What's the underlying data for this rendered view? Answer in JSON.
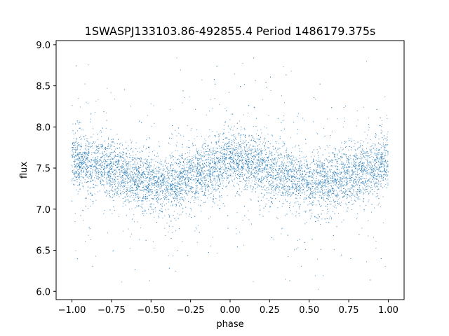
{
  "chart_data": {
    "type": "scatter",
    "title": "1SWASPJ133103.86-492855.4 Period 1486179.375s",
    "xlabel": "phase",
    "ylabel": "flux",
    "xlim": [
      -1.1,
      1.1
    ],
    "ylim": [
      5.9,
      9.05
    ],
    "xticks": [
      -1.0,
      -0.75,
      -0.5,
      -0.25,
      0.0,
      0.25,
      0.5,
      0.75,
      1.0
    ],
    "xtick_labels": [
      "−1.00",
      "−0.75",
      "−0.50",
      "−0.25",
      "0.00",
      "0.25",
      "0.50",
      "0.75",
      "1.00"
    ],
    "yticks": [
      6.0,
      6.5,
      7.0,
      7.5,
      8.0,
      8.5,
      9.0
    ],
    "ytick_labels": [
      "6.0",
      "6.5",
      "7.0",
      "7.5",
      "8.0",
      "8.5",
      "9.0"
    ],
    "grid": false,
    "marker_color": "#1f77b4",
    "marker": "small dots",
    "series": [
      {
        "name": "",
        "x_range": [
          -1.0,
          1.0
        ],
        "mean_flux_profile": {
          "phase": [
            -1.0,
            -0.75,
            -0.5,
            -0.4,
            -0.25,
            -0.1,
            0.0,
            0.25,
            0.5,
            0.6,
            0.75,
            0.9,
            1.0
          ],
          "flux": [
            7.6,
            7.5,
            7.3,
            7.3,
            7.4,
            7.5,
            7.6,
            7.5,
            7.3,
            7.3,
            7.4,
            7.5,
            7.6
          ]
        },
        "flux_min": 6.0,
        "flux_max": 8.9
      }
    ]
  }
}
